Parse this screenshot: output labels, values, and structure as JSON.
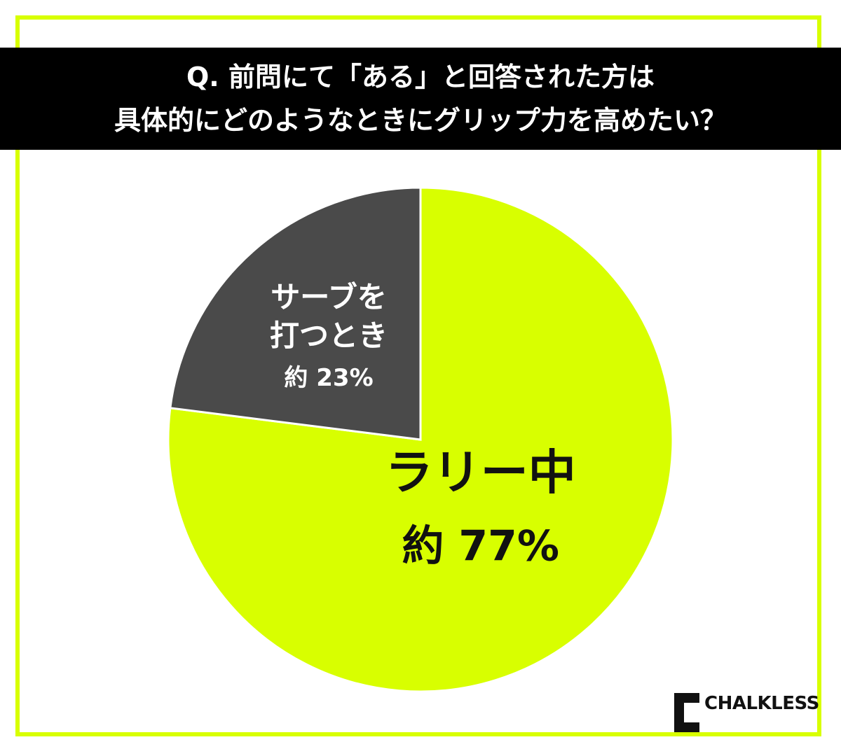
{
  "chart_data": {
    "type": "pie",
    "title": "Q. 前問にて「ある」と回答された方は\n具体的にどのようなときにグリップ力を高めたい？",
    "categories": [
      "ラリー中",
      "サーブを\n打つとき"
    ],
    "values": [
      77,
      23
    ],
    "value_labels": [
      "約 77%",
      "約 23%"
    ],
    "colors": [
      "#d8ff00",
      "#4a4a4a"
    ]
  },
  "brand": "CHALKLESS"
}
